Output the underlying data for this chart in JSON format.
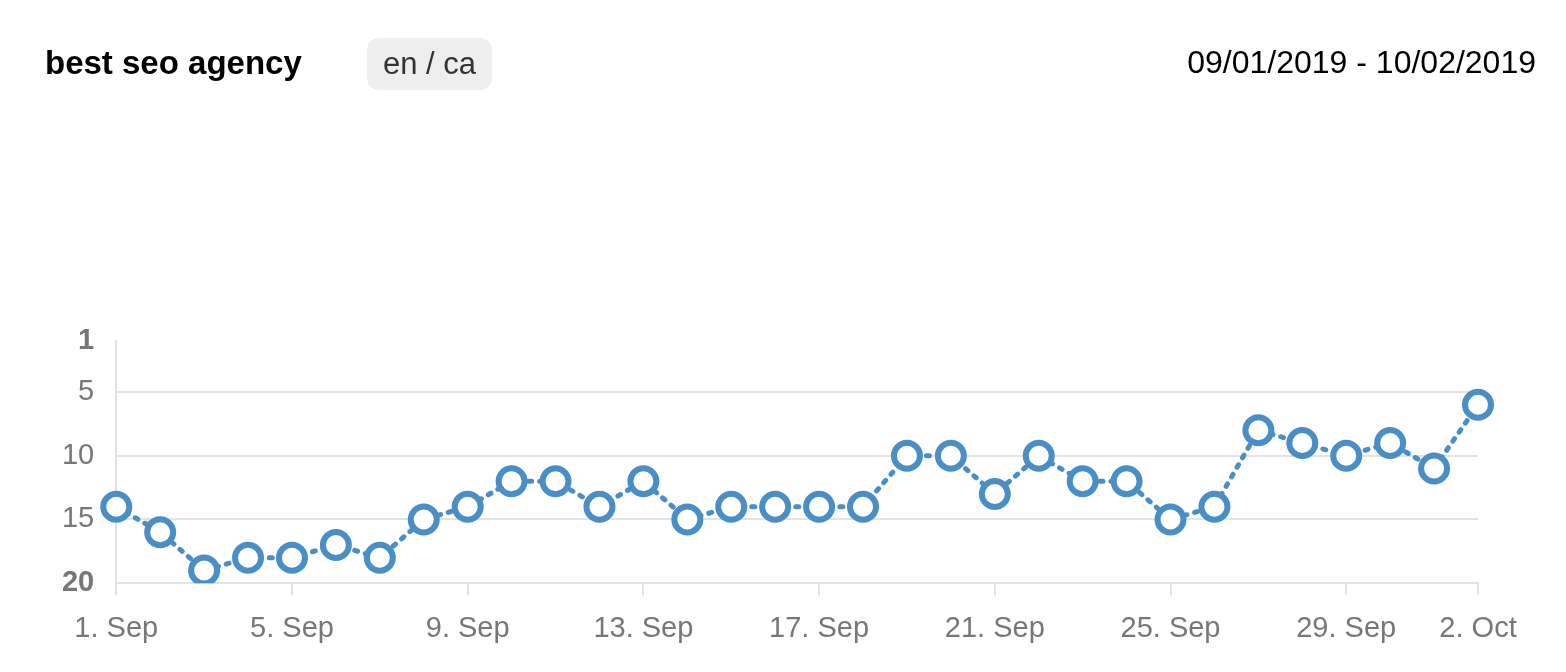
{
  "chart_data": {
    "type": "line",
    "title": "best seo agency",
    "subtitle": "en / ca",
    "annotations": [
      "09/01/2019 - 10/02/2019"
    ],
    "categories": [
      "1. Sep",
      null,
      null,
      null,
      "5. Sep",
      null,
      null,
      null,
      "9. Sep",
      null,
      null,
      null,
      "13. Sep",
      null,
      null,
      null,
      "17. Sep",
      null,
      null,
      null,
      "21. Sep",
      null,
      null,
      null,
      "25. Sep",
      null,
      null,
      null,
      "29. Sep",
      null,
      null,
      "2. Oct"
    ],
    "series": [
      {
        "color": "#4a8ec6",
        "values": [
          14,
          16,
          19,
          18,
          18,
          17,
          18,
          15,
          14,
          12,
          12,
          14,
          12,
          15,
          14,
          14,
          14,
          14,
          10,
          10,
          13,
          10,
          12,
          12,
          15,
          14,
          8,
          9,
          10,
          9,
          11,
          6
        ]
      }
    ],
    "ylim": [
      20,
      1
    ],
    "yticks": [
      1,
      5,
      10,
      15,
      20
    ],
    "grid": "y",
    "legend": false,
    "marker": "circle",
    "line_style": "dotted"
  }
}
